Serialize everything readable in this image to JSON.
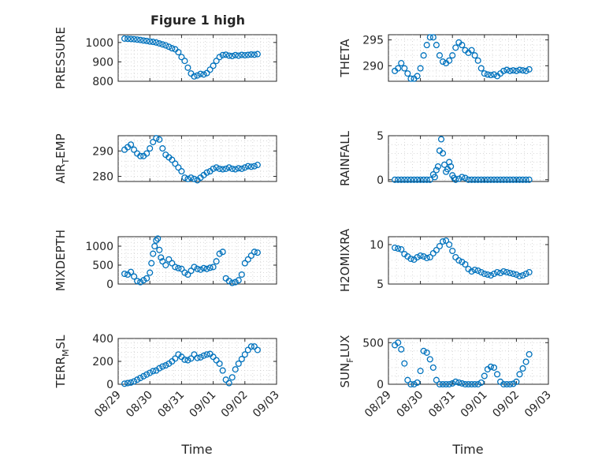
{
  "figure": {
    "title": "Figure 1 high",
    "xlabel": "Time",
    "x_ticks": [
      "08/29",
      "08/30",
      "08/31",
      "09/01",
      "09/02",
      "09/03"
    ],
    "marker": "circle-open",
    "marker_color": "#0072BD"
  },
  "chart_data": [
    {
      "type": "scatter",
      "ylabel": "PRESSURE",
      "xlim": [
        0,
        5
      ],
      "ylim": [
        800,
        1040
      ],
      "yticks": [
        800,
        900,
        1000
      ],
      "grid": true,
      "x": [
        0.2,
        0.3,
        0.4,
        0.5,
        0.6,
        0.7,
        0.8,
        0.9,
        1.0,
        1.1,
        1.2,
        1.3,
        1.4,
        1.5,
        1.6,
        1.7,
        1.8,
        1.9,
        2.0,
        2.1,
        2.2,
        2.3,
        2.4,
        2.5,
        2.6,
        2.7,
        2.8,
        2.9,
        3.0,
        3.1,
        3.2,
        3.3,
        3.4,
        3.5,
        3.6,
        3.7,
        3.8,
        3.9,
        4.0,
        4.1,
        4.2,
        4.3,
        4.4
      ],
      "y": [
        1020,
        1019,
        1018,
        1017,
        1015,
        1013,
        1010,
        1008,
        1005,
        1003,
        1000,
        995,
        990,
        985,
        978,
        970,
        965,
        950,
        925,
        905,
        870,
        840,
        825,
        830,
        838,
        835,
        842,
        860,
        880,
        905,
        925,
        935,
        937,
        932,
        930,
        935,
        932,
        936,
        934,
        936,
        938,
        937,
        940
      ]
    },
    {
      "type": "scatter",
      "ylabel": "THETA",
      "xlim": [
        0,
        5
      ],
      "ylim": [
        287,
        296
      ],
      "yticks": [
        290,
        295
      ],
      "grid": true,
      "x": [
        0.2,
        0.3,
        0.4,
        0.5,
        0.6,
        0.7,
        0.8,
        0.9,
        1.0,
        1.1,
        1.2,
        1.3,
        1.4,
        1.5,
        1.6,
        1.7,
        1.8,
        1.9,
        2.0,
        2.1,
        2.2,
        2.3,
        2.4,
        2.5,
        2.6,
        2.7,
        2.8,
        2.9,
        3.0,
        3.1,
        3.2,
        3.3,
        3.4,
        3.5,
        3.6,
        3.7,
        3.8,
        3.9,
        4.0,
        4.1,
        4.2,
        4.3,
        4.4
      ],
      "y": [
        289.0,
        289.5,
        290.5,
        289.5,
        288.5,
        287.5,
        287.5,
        288.0,
        289.5,
        292.0,
        294.0,
        295.5,
        295.5,
        294.0,
        292.0,
        290.8,
        290.5,
        291.0,
        292.0,
        293.5,
        294.5,
        294.0,
        293.0,
        292.5,
        293.0,
        292.0,
        291.0,
        289.5,
        288.5,
        288.3,
        288.2,
        288.3,
        288.0,
        288.5,
        289.0,
        289.2,
        289.0,
        289.1,
        289.0,
        289.2,
        289.1,
        289.0,
        289.3
      ]
    },
    {
      "type": "scatter",
      "ylabel": "AIR_TEMP",
      "xlim": [
        0,
        5
      ],
      "ylim": [
        278,
        296
      ],
      "yticks": [
        280,
        290
      ],
      "grid": true,
      "x": [
        0.2,
        0.3,
        0.4,
        0.5,
        0.6,
        0.7,
        0.8,
        0.9,
        1.0,
        1.1,
        1.2,
        1.3,
        1.4,
        1.5,
        1.6,
        1.7,
        1.8,
        1.9,
        2.0,
        2.1,
        2.2,
        2.3,
        2.4,
        2.5,
        2.6,
        2.7,
        2.8,
        2.9,
        3.0,
        3.1,
        3.2,
        3.3,
        3.4,
        3.5,
        3.6,
        3.7,
        3.8,
        3.9,
        4.0,
        4.1,
        4.2,
        4.3,
        4.4
      ],
      "y": [
        290.5,
        291.5,
        292.5,
        290.5,
        289.0,
        288.0,
        288.0,
        289.0,
        291.0,
        293.5,
        295.0,
        294.5,
        291.0,
        288.5,
        287.5,
        286.5,
        285.0,
        283.5,
        282.0,
        279.5,
        279.0,
        279.5,
        279.0,
        278.5,
        279.5,
        280.5,
        281.5,
        282.0,
        283.0,
        283.5,
        283.0,
        282.8,
        283.0,
        283.5,
        283.0,
        282.8,
        283.2,
        283.0,
        283.5,
        284.0,
        283.8,
        284.0,
        284.5
      ]
    },
    {
      "type": "scatter",
      "ylabel": "RAINFALL",
      "xlim": [
        0,
        5
      ],
      "ylim": [
        -0.2,
        5
      ],
      "yticks": [
        0,
        5
      ],
      "grid": true,
      "x": [
        0.2,
        0.3,
        0.4,
        0.5,
        0.6,
        0.7,
        0.8,
        0.9,
        1.0,
        1.1,
        1.2,
        1.3,
        1.4,
        1.45,
        1.5,
        1.55,
        1.6,
        1.65,
        1.7,
        1.75,
        1.8,
        1.85,
        1.9,
        1.95,
        2.0,
        2.05,
        2.1,
        2.2,
        2.3,
        2.4,
        2.5,
        2.6,
        2.7,
        2.8,
        2.9,
        3.0,
        3.1,
        3.2,
        3.3,
        3.4,
        3.5,
        3.6,
        3.7,
        3.8,
        3.9,
        4.0,
        4.1,
        4.2,
        4.3,
        4.4
      ],
      "y": [
        0,
        0,
        0,
        0,
        0,
        0,
        0,
        0,
        0,
        0,
        0,
        0,
        0.6,
        0.3,
        1.1,
        1.5,
        3.3,
        4.6,
        3.0,
        1.7,
        0.9,
        1.2,
        2.0,
        1.5,
        0.5,
        0.2,
        0,
        0.1,
        0.3,
        0.2,
        0,
        0,
        0,
        0,
        0,
        0,
        0,
        0,
        0,
        0,
        0,
        0,
        0,
        0,
        0,
        0,
        0,
        0,
        0,
        0
      ]
    },
    {
      "type": "scatter",
      "ylabel": "MIXDEPTH",
      "xlim": [
        0,
        5
      ],
      "ylim": [
        0,
        1250
      ],
      "yticks": [
        0,
        500,
        1000
      ],
      "grid": true,
      "x": [
        0.2,
        0.3,
        0.4,
        0.5,
        0.6,
        0.7,
        0.8,
        0.9,
        1.0,
        1.05,
        1.1,
        1.15,
        1.2,
        1.25,
        1.3,
        1.35,
        1.4,
        1.5,
        1.6,
        1.7,
        1.8,
        1.9,
        2.0,
        2.1,
        2.2,
        2.3,
        2.4,
        2.5,
        2.6,
        2.7,
        2.8,
        2.9,
        3.0,
        3.1,
        3.2,
        3.3,
        3.4,
        3.5,
        3.6,
        3.7,
        3.8,
        3.9,
        4.0,
        4.1,
        4.2,
        4.3,
        4.4
      ],
      "y": [
        270,
        250,
        320,
        200,
        80,
        50,
        100,
        150,
        300,
        550,
        800,
        1000,
        1150,
        1200,
        900,
        700,
        600,
        500,
        650,
        550,
        450,
        420,
        400,
        300,
        250,
        350,
        450,
        400,
        380,
        420,
        400,
        430,
        450,
        600,
        800,
        850,
        150,
        80,
        30,
        50,
        100,
        250,
        550,
        650,
        750,
        850,
        830
      ]
    },
    {
      "type": "scatter",
      "ylabel": "H2OMIXRA",
      "xlim": [
        0,
        5
      ],
      "ylim": [
        5,
        11
      ],
      "yticks": [
        5,
        10
      ],
      "grid": true,
      "x": [
        0.2,
        0.3,
        0.4,
        0.5,
        0.6,
        0.7,
        0.8,
        0.9,
        1.0,
        1.1,
        1.2,
        1.3,
        1.4,
        1.5,
        1.6,
        1.7,
        1.8,
        1.9,
        2.0,
        2.1,
        2.2,
        2.3,
        2.4,
        2.5,
        2.6,
        2.7,
        2.8,
        2.9,
        3.0,
        3.1,
        3.2,
        3.3,
        3.4,
        3.5,
        3.6,
        3.7,
        3.8,
        3.9,
        4.0,
        4.1,
        4.2,
        4.3,
        4.4
      ],
      "y": [
        9.6,
        9.5,
        9.4,
        8.8,
        8.5,
        8.2,
        8.1,
        8.4,
        8.6,
        8.5,
        8.3,
        8.4,
        8.9,
        9.3,
        9.8,
        10.4,
        10.5,
        10.0,
        9.2,
        8.4,
        8.0,
        7.8,
        7.5,
        6.9,
        6.6,
        6.8,
        6.7,
        6.5,
        6.3,
        6.2,
        6.1,
        6.3,
        6.5,
        6.4,
        6.6,
        6.5,
        6.4,
        6.3,
        6.2,
        6.0,
        6.1,
        6.3,
        6.5
      ]
    },
    {
      "type": "scatter",
      "ylabel": "TERR_MSL",
      "xlim": [
        0,
        5
      ],
      "ylim": [
        0,
        400
      ],
      "yticks": [
        0,
        200,
        400
      ],
      "grid": true,
      "x": [
        0.2,
        0.3,
        0.4,
        0.5,
        0.6,
        0.7,
        0.8,
        0.9,
        1.0,
        1.1,
        1.2,
        1.3,
        1.4,
        1.5,
        1.6,
        1.7,
        1.8,
        1.9,
        2.0,
        2.1,
        2.2,
        2.3,
        2.4,
        2.5,
        2.6,
        2.7,
        2.8,
        2.9,
        3.0,
        3.1,
        3.2,
        3.3,
        3.4,
        3.5,
        3.6,
        3.7,
        3.8,
        3.9,
        4.0,
        4.1,
        4.2,
        4.3,
        4.4
      ],
      "y": [
        5,
        10,
        15,
        25,
        40,
        55,
        70,
        85,
        100,
        115,
        120,
        140,
        155,
        165,
        180,
        200,
        225,
        260,
        240,
        215,
        210,
        225,
        260,
        230,
        235,
        250,
        260,
        265,
        240,
        210,
        180,
        120,
        40,
        10,
        60,
        130,
        180,
        220,
        260,
        300,
        330,
        330,
        300
      ]
    },
    {
      "type": "scatter",
      "ylabel": "SUN_FLUX",
      "xlim": [
        0,
        5
      ],
      "ylim": [
        0,
        550
      ],
      "yticks": [
        0,
        500
      ],
      "grid": true,
      "x": [
        0.2,
        0.3,
        0.4,
        0.5,
        0.6,
        0.7,
        0.8,
        0.9,
        1.0,
        1.1,
        1.2,
        1.3,
        1.4,
        1.5,
        1.6,
        1.7,
        1.8,
        1.9,
        2.0,
        2.1,
        2.2,
        2.3,
        2.4,
        2.5,
        2.6,
        2.7,
        2.8,
        2.9,
        3.0,
        3.1,
        3.2,
        3.3,
        3.4,
        3.5,
        3.6,
        3.7,
        3.8,
        3.9,
        4.0,
        4.1,
        4.2,
        4.3,
        4.4
      ],
      "y": [
        470,
        500,
        420,
        250,
        50,
        0,
        0,
        20,
        160,
        400,
        380,
        300,
        200,
        50,
        0,
        0,
        0,
        0,
        10,
        30,
        20,
        10,
        0,
        0,
        0,
        0,
        0,
        20,
        100,
        180,
        210,
        200,
        120,
        30,
        0,
        0,
        0,
        5,
        30,
        120,
        190,
        270,
        360
      ]
    }
  ]
}
